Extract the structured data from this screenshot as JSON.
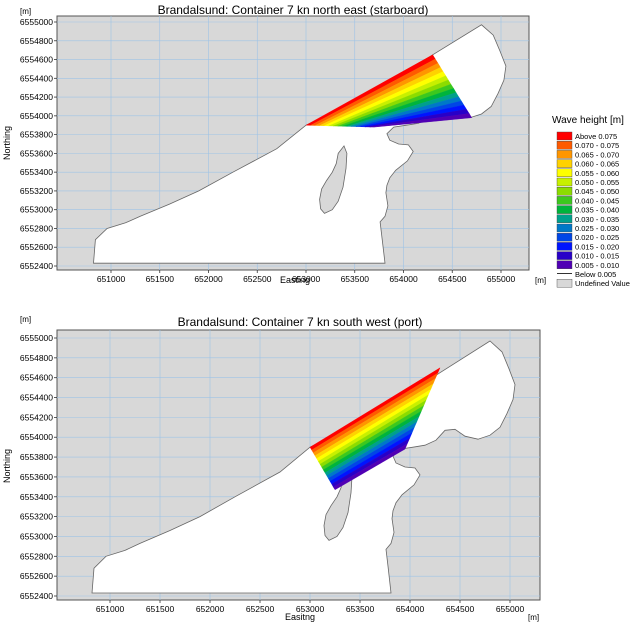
{
  "chart_data": [
    {
      "type": "heatmap",
      "title": "Brandalsund: Container 7 kn north east (starboard)",
      "xlabel": "Easting",
      "ylabel": "Northing",
      "x_unit": "[m]",
      "y_unit": "[m]",
      "xlim": [
        650700,
        655250
      ],
      "ylim": [
        6552400,
        6555080
      ],
      "x_ticks": [
        651000,
        651500,
        652000,
        652500,
        653000,
        653500,
        654000,
        654500,
        655000
      ],
      "y_ticks": [
        6552400,
        6552600,
        6552800,
        6553000,
        6553200,
        6553400,
        6553600,
        6553800,
        6554000,
        6554200,
        6554400,
        6554600,
        6554800,
        6555000
      ],
      "grid": true,
      "wave_region": {
        "x_range": [
          653000,
          654700
        ],
        "y_range": [
          6553850,
          6554650
        ],
        "max_class": "Above 0.075"
      }
    },
    {
      "type": "heatmap",
      "title": "Brandalsund: Container 7 kn south west (port)",
      "xlabel": "Easitng",
      "ylabel": "Northing",
      "x_unit": "[m]",
      "y_unit": "[m]",
      "xlim": [
        650700,
        655250
      ],
      "ylim": [
        6552400,
        6555080
      ],
      "x_ticks": [
        651000,
        651500,
        652000,
        652500,
        653000,
        653500,
        654000,
        654500,
        655000
      ],
      "y_ticks": [
        6552400,
        6552600,
        6552800,
        6553000,
        6553200,
        6553400,
        6553600,
        6553800,
        6554000,
        6554200,
        6554400,
        6554600,
        6554800,
        6555000
      ],
      "grid": true,
      "wave_region": {
        "x_range": [
          653000,
          654300
        ],
        "y_range": [
          6553450,
          6554700
        ],
        "max_class": "Above 0.075"
      }
    }
  ],
  "legend": {
    "title": "Wave height [m]",
    "placement": "right",
    "entries": [
      {
        "label": "Above  0.075",
        "color": "#ff0000"
      },
      {
        "label": "0.070 - 0.075",
        "color": "#ff5a00"
      },
      {
        "label": "0.065 - 0.070",
        "color": "#ff9600"
      },
      {
        "label": "0.060 - 0.065",
        "color": "#ffd200"
      },
      {
        "label": "0.055 - 0.060",
        "color": "#ffff00"
      },
      {
        "label": "0.050 - 0.055",
        "color": "#c8f000"
      },
      {
        "label": "0.045 - 0.050",
        "color": "#8cdc00"
      },
      {
        "label": "0.040 - 0.045",
        "color": "#3cc81e"
      },
      {
        "label": "0.035 - 0.040",
        "color": "#00b43c"
      },
      {
        "label": "0.030 - 0.035",
        "color": "#00a08c"
      },
      {
        "label": "0.025 - 0.030",
        "color": "#0078c8"
      },
      {
        "label": "0.020 - 0.025",
        "color": "#0046e6"
      },
      {
        "label": "0.015 - 0.020",
        "color": "#0014ff"
      },
      {
        "label": "0.010 - 0.015",
        "color": "#2800c8"
      },
      {
        "label": "0.005 - 0.010",
        "color": "#5000b4"
      },
      {
        "label": "Below  0.005",
        "color": "line"
      },
      {
        "label": "Undefined Value",
        "color": "#d8d8d8"
      }
    ]
  },
  "colors": {
    "land": "#d8d8d8",
    "water": "#ffffff",
    "grid": "#9ec3e6"
  }
}
